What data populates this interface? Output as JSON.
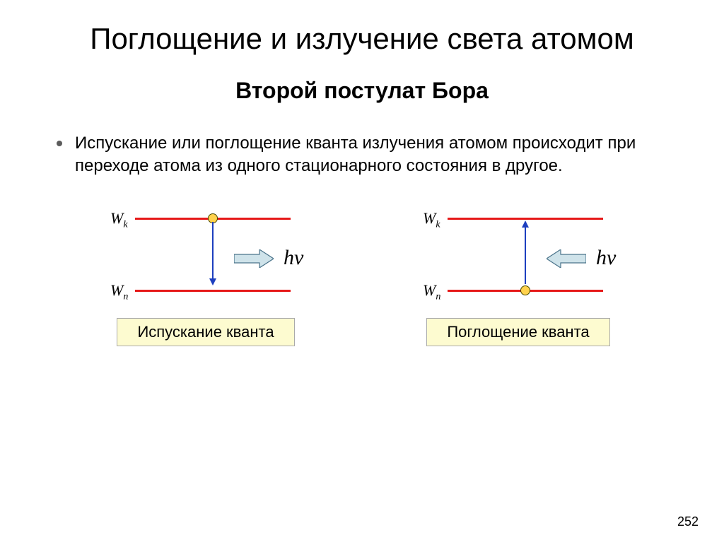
{
  "title": "Поглощение и излучение света атомом",
  "subtitle": "Второй постулат Бора",
  "bullet": "Испускание или поглощение кванта излучения атомом происходит при переходе атома из одного стационарного состояния в другое.",
  "diagrams": {
    "colors": {
      "level_line": "#e61919",
      "dot_fill": "#ffd24d",
      "dot_stroke": "#4a4a00",
      "arrow_vert": "#1d3fbf",
      "block_arrow_fill": "#cfe3ea",
      "block_arrow_stroke": "#4a738a",
      "caption_bg": "#fdfbd0",
      "caption_border": "#aaaaaa"
    },
    "level_top_label": "W<sub>k</sub>",
    "level_bottom_label": "W<sub>n</sub>",
    "hv_label": "hν",
    "left": {
      "direction": "emission",
      "caption": "Испускание кванта",
      "dot_on": "top",
      "vert_arrow": "down",
      "block_arrow": "right"
    },
    "right": {
      "direction": "absorption",
      "caption": "Поглощение кванта",
      "dot_on": "bottom",
      "vert_arrow": "up",
      "block_arrow": "left"
    }
  },
  "page_number": "252"
}
